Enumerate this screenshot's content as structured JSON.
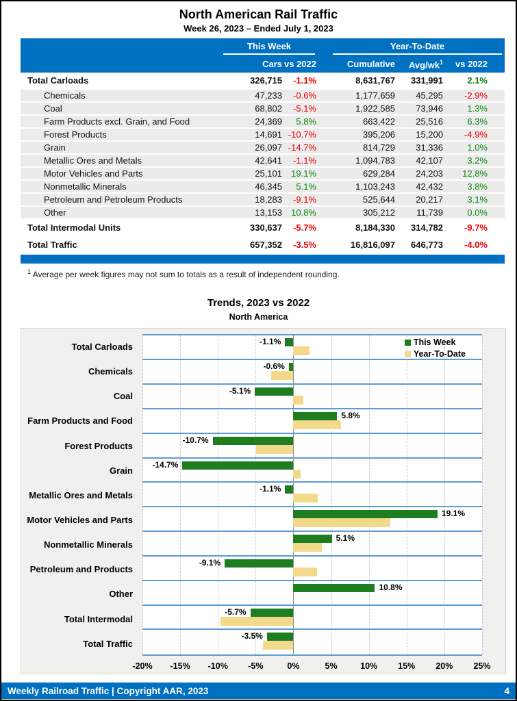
{
  "page": {
    "title": "North American Rail Traffic",
    "subtitle": "Week 26, 2023 – Ended July 1, 2023"
  },
  "table": {
    "group_cols": {
      "week": "This Week",
      "ytd": "Year-To-Date"
    },
    "sub_cols": {
      "cars": "Cars",
      "week_vs": "vs 2022",
      "cumulative": "Cumulative",
      "avgwk": "Avg/wk",
      "avgwk_sup": "1",
      "ytd_vs": "vs 2022"
    },
    "rows": [
      {
        "label": "Total Carloads",
        "total": true,
        "cars": "326,715",
        "week_vs": "-1.1%",
        "week_dir": "neg",
        "cumulative": "8,631,767",
        "avgwk": "331,991",
        "ytd_vs": "2.1%",
        "ytd_dir": "pos"
      },
      {
        "label": "Chemicals",
        "total": false,
        "cars": "47,233",
        "week_vs": "-0.6%",
        "week_dir": "neg",
        "cumulative": "1,177,659",
        "avgwk": "45,295",
        "ytd_vs": "-2.9%",
        "ytd_dir": "neg"
      },
      {
        "label": "Coal",
        "total": false,
        "cars": "68,802",
        "week_vs": "-5.1%",
        "week_dir": "neg",
        "cumulative": "1,922,585",
        "avgwk": "73,946",
        "ytd_vs": "1.3%",
        "ytd_dir": "pos"
      },
      {
        "label": "Farm Products excl. Grain, and Food",
        "total": false,
        "cars": "24,369",
        "week_vs": "5.8%",
        "week_dir": "pos",
        "cumulative": "663,422",
        "avgwk": "25,516",
        "ytd_vs": "6.3%",
        "ytd_dir": "pos"
      },
      {
        "label": "Forest Products",
        "total": false,
        "cars": "14,691",
        "week_vs": "-10.7%",
        "week_dir": "neg",
        "cumulative": "395,206",
        "avgwk": "15,200",
        "ytd_vs": "-4.9%",
        "ytd_dir": "neg"
      },
      {
        "label": "Grain",
        "total": false,
        "cars": "26,097",
        "week_vs": "-14.7%",
        "week_dir": "neg",
        "cumulative": "814,729",
        "avgwk": "31,336",
        "ytd_vs": "1.0%",
        "ytd_dir": "pos"
      },
      {
        "label": "Metallic Ores and Metals",
        "total": false,
        "cars": "42,641",
        "week_vs": "-1.1%",
        "week_dir": "neg",
        "cumulative": "1,094,783",
        "avgwk": "42,107",
        "ytd_vs": "3.2%",
        "ytd_dir": "pos"
      },
      {
        "label": "Motor Vehicles and Parts",
        "total": false,
        "cars": "25,101",
        "week_vs": "19.1%",
        "week_dir": "pos",
        "cumulative": "629,284",
        "avgwk": "24,203",
        "ytd_vs": "12.8%",
        "ytd_dir": "pos"
      },
      {
        "label": "Nonmetallic Minerals",
        "total": false,
        "cars": "46,345",
        "week_vs": "5.1%",
        "week_dir": "pos",
        "cumulative": "1,103,243",
        "avgwk": "42,432",
        "ytd_vs": "3.8%",
        "ytd_dir": "pos"
      },
      {
        "label": "Petroleum and Petroleum Products",
        "total": false,
        "cars": "18,283",
        "week_vs": "-9.1%",
        "week_dir": "neg",
        "cumulative": "525,644",
        "avgwk": "20,217",
        "ytd_vs": "3.1%",
        "ytd_dir": "pos"
      },
      {
        "label": "Other",
        "total": false,
        "cars": "13,153",
        "week_vs": "10.8%",
        "week_dir": "pos",
        "cumulative": "305,212",
        "avgwk": "11,739",
        "ytd_vs": "0.0%",
        "ytd_dir": "pos"
      },
      {
        "label": "Total Intermodal Units",
        "total": true,
        "cars": "330,637",
        "week_vs": "-5.7%",
        "week_dir": "neg",
        "cumulative": "8,184,330",
        "avgwk": "314,782",
        "ytd_vs": "-9.7%",
        "ytd_dir": "neg"
      },
      {
        "label": "Total Traffic",
        "total": true,
        "cars": "657,352",
        "week_vs": "-3.5%",
        "week_dir": "neg",
        "cumulative": "16,816,097",
        "avgwk": "646,773",
        "ytd_vs": "-4.0%",
        "ytd_dir": "neg"
      }
    ]
  },
  "footnote": {
    "sup": "1",
    "text": "Average per week figures may not sum to totals as a result of independent rounding."
  },
  "chart": {
    "title": "Trends, 2023 vs 2022",
    "subtitle": "North America"
  },
  "chart_data": {
    "type": "bar",
    "orientation": "horizontal",
    "title": "Trends, 2023 vs 2022",
    "subtitle": "North America",
    "categories": [
      "Total Carloads",
      "Chemicals",
      "Coal",
      "Farm Products and Food",
      "Forest Products",
      "Grain",
      "Metallic Ores and Metals",
      "Motor Vehicles and Parts",
      "Nonmetallic Minerals",
      "Petroleum and Products",
      "Other",
      "Total Intermodal",
      "Total Traffic"
    ],
    "series": [
      {
        "name": "This Week",
        "color": "#1E7D1E",
        "values": [
          -1.1,
          -0.6,
          -5.1,
          5.8,
          -10.7,
          -14.7,
          -1.1,
          19.1,
          5.1,
          -9.1,
          10.8,
          -5.7,
          -3.5
        ]
      },
      {
        "name": "Year-To-Date",
        "color": "#F2D98B",
        "values": [
          2.1,
          -2.9,
          1.3,
          6.3,
          -4.9,
          1.0,
          3.2,
          12.8,
          3.8,
          3.1,
          0.0,
          -9.7,
          -4.0
        ]
      }
    ],
    "bar_labels": [
      "-1.1%",
      "-0.6%",
      "-5.1%",
      "5.8%",
      "-10.7%",
      "-14.7%",
      "-1.1%",
      "19.1%",
      "5.1%",
      "-9.1%",
      "10.8%",
      "-5.7%",
      "-3.5%"
    ],
    "xlim": [
      -20,
      25
    ],
    "ticks": [
      -20,
      -15,
      -10,
      -5,
      0,
      5,
      10,
      15,
      20,
      25
    ],
    "tick_labels": [
      "-20%",
      "-15%",
      "-10%",
      "-5%",
      "0%",
      "5%",
      "10%",
      "15%",
      "20%",
      "25%"
    ],
    "legend_position": "top-right",
    "grid": "vertical-dashed"
  },
  "footer": {
    "left": "Weekly Railroad Traffic | Copyright AAR, 2023",
    "page": "4"
  },
  "colors": {
    "accent_blue": "#0070C0",
    "separator_blue": "#5B9BD5",
    "bar_green": "#1E7D1E",
    "bar_tan": "#F2D98B",
    "positive_green": "#0E870E",
    "negative_red": "#EE0000",
    "row_stripe": "#EBEBEB"
  }
}
